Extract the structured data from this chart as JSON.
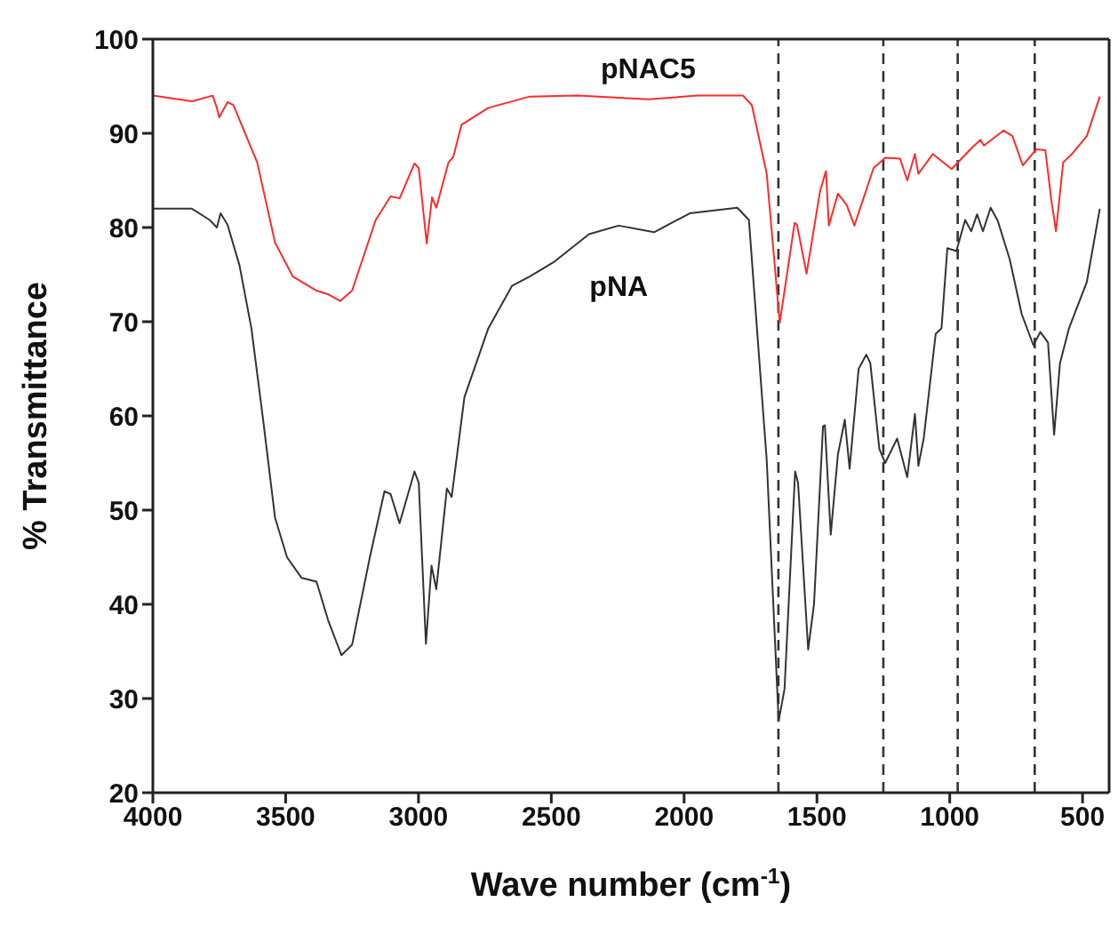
{
  "chart_data": {
    "type": "line",
    "xlabel": "Wave number (cm$^{-1}$)",
    "ylabel": "% Transmittance",
    "xlim": [
      4000,
      400
    ],
    "xticks": [
      4000,
      3500,
      3000,
      2500,
      2000,
      1500,
      1000,
      500
    ],
    "ylim": [
      20,
      100
    ],
    "yticks": [
      20,
      30,
      40,
      50,
      60,
      70,
      80,
      90,
      100
    ],
    "grid": false,
    "legend": false,
    "marker": "none",
    "line_style": "solid",
    "series": [
      {
        "name": "pNAC5",
        "color": "#ff2a2a",
        "x": [
          4000,
          3853,
          3775,
          3759,
          3750,
          3719,
          3697,
          3607,
          3540,
          3473,
          3384,
          3339,
          3295,
          3250,
          3161,
          3105,
          3071,
          3015,
          2999,
          2969,
          2949,
          2933,
          2887,
          2869,
          2838,
          2737,
          2581,
          2400,
          2135,
          1950,
          1778,
          1745,
          1689,
          1640,
          1617,
          1584,
          1575,
          1539,
          1488,
          1466,
          1455,
          1421,
          1388,
          1359,
          1287,
          1243,
          1187,
          1160,
          1131,
          1118,
          1064,
          993,
          919,
          885,
          871,
          797,
          764,
          725,
          674,
          640,
          618,
          600,
          573,
          540,
          484,
          435
        ],
        "values": [
          94,
          93.4,
          94,
          92.7,
          91.7,
          93.3,
          93,
          86.9,
          78.4,
          74.8,
          73.3,
          72.9,
          72.2,
          73.3,
          80.8,
          83.3,
          83.1,
          86.8,
          86.3,
          78.3,
          83.2,
          82.1,
          86.9,
          87.5,
          90.9,
          92.7,
          93.9,
          94,
          93.6,
          94,
          94,
          93,
          85.7,
          69.9,
          74.2,
          80.5,
          80.3,
          75.1,
          83.9,
          86,
          80.2,
          83.6,
          82.4,
          80.2,
          86.3,
          87.4,
          87.3,
          85,
          87.8,
          85.7,
          87.8,
          86.2,
          88.4,
          89.3,
          88.7,
          90.3,
          89.7,
          86.6,
          88.3,
          88.2,
          83,
          79.6,
          86.9,
          87.8,
          89.7,
          93.9
        ]
      },
      {
        "name": "pNA",
        "color": "#333333",
        "x": [
          4000,
          3853,
          3786,
          3759,
          3745,
          3719,
          3674,
          3629,
          3585,
          3540,
          3495,
          3440,
          3384,
          3340,
          3290,
          3250,
          3183,
          3128,
          3105,
          3071,
          3015,
          2999,
          2972,
          2951,
          2933,
          2893,
          2875,
          2827,
          2737,
          2648,
          2581,
          2492,
          2358,
          2246,
          2113,
          1979,
          1800,
          1756,
          1689,
          1644,
          1622,
          1582,
          1571,
          1533,
          1511,
          1477,
          1470,
          1448,
          1421,
          1395,
          1377,
          1343,
          1314,
          1299,
          1265,
          1243,
          1198,
          1160,
          1131,
          1118,
          1098,
          1053,
          1031,
          1009,
          975,
          942,
          919,
          897,
          875,
          846,
          819,
          774,
          729,
          685,
          659,
          630,
          607,
          585,
          551,
          484,
          435
        ],
        "values": [
          82,
          82,
          80.8,
          80,
          81.5,
          80.3,
          76,
          69.3,
          59.6,
          49.2,
          45,
          42.8,
          42.4,
          38.3,
          34.6,
          35.7,
          45,
          52,
          51.7,
          48.6,
          54.1,
          52.9,
          35.8,
          44.1,
          41.6,
          52.3,
          51.4,
          62,
          69.3,
          73.8,
          74.8,
          76.3,
          79.3,
          80.2,
          79.5,
          81.5,
          82.1,
          80.8,
          55.3,
          27.6,
          31,
          54.1,
          52.9,
          35.2,
          40,
          58.9,
          59,
          47.4,
          55.9,
          59.6,
          54.4,
          65,
          66.5,
          65.6,
          56.5,
          55,
          57.6,
          53.5,
          60.2,
          54.7,
          57.6,
          68.7,
          69.3,
          77.8,
          77.5,
          80.8,
          79.6,
          81.4,
          79.6,
          82.1,
          80.7,
          76.6,
          70.8,
          67.5,
          68.9,
          67.8,
          58,
          65.6,
          69.3,
          74.2,
          82
        ]
      }
    ],
    "ref_lines": [
      {
        "axis": "x",
        "value": 1645,
        "color": "#333333",
        "line_style": "dashed"
      },
      {
        "axis": "x",
        "value": 1250,
        "color": "#333333",
        "line_style": "dashed"
      },
      {
        "axis": "x",
        "value": 970,
        "color": "#333333",
        "line_style": "dashed"
      },
      {
        "axis": "x",
        "value": 680,
        "color": "#333333",
        "line_style": "dashed"
      }
    ]
  }
}
